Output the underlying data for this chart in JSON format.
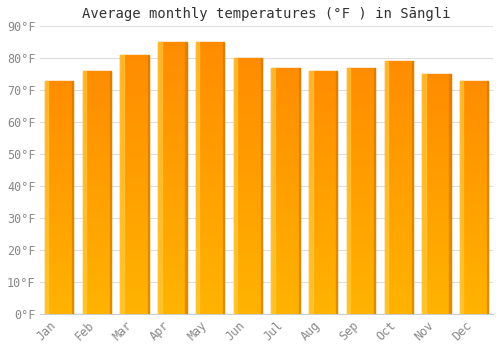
{
  "months": [
    "Jan",
    "Feb",
    "Mar",
    "Apr",
    "May",
    "Jun",
    "Jul",
    "Aug",
    "Sep",
    "Oct",
    "Nov",
    "Dec"
  ],
  "values": [
    73,
    76,
    81,
    85,
    85,
    80,
    77,
    76,
    77,
    79,
    75,
    73
  ],
  "bar_color_bottom": "#FFB300",
  "bar_color_top": "#FF8C00",
  "bar_color_left_highlight": "#FFCC44",
  "title": "Average monthly temperatures (°F ) in Sāngli",
  "ylim": [
    0,
    90
  ],
  "yticks": [
    0,
    10,
    20,
    30,
    40,
    50,
    60,
    70,
    80,
    90
  ],
  "ytick_labels": [
    "0°F",
    "10°F",
    "20°F",
    "30°F",
    "40°F",
    "50°F",
    "60°F",
    "70°F",
    "80°F",
    "90°F"
  ],
  "background_color": "#ffffff",
  "plot_bg_color": "#ffffff",
  "grid_color": "#dddddd",
  "title_fontsize": 10,
  "tick_fontsize": 8.5,
  "tick_color": "#888888",
  "title_color": "#333333"
}
